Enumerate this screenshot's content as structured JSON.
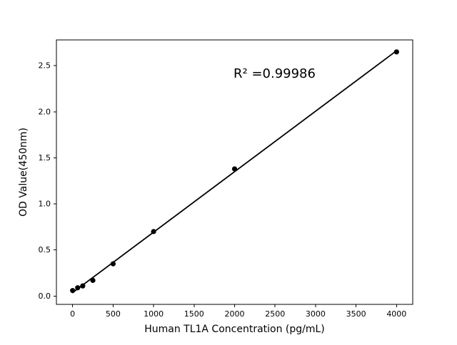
{
  "chart_data": {
    "type": "scatter",
    "title": "",
    "xlabel": "Human TL1A Concentration (pg/mL)",
    "ylabel": "OD Value(450nm)",
    "annotation": "R² =0.99986",
    "r_squared": 0.99986,
    "x": [
      0,
      62.5,
      125,
      250,
      500,
      1000,
      2000,
      4000
    ],
    "y": [
      0.06,
      0.09,
      0.11,
      0.17,
      0.35,
      0.7,
      1.38,
      2.65
    ],
    "trendline": "linear",
    "xlim": [
      -200,
      4200
    ],
    "ylim": [
      -0.09,
      2.78
    ],
    "x_ticks": [
      0,
      500,
      1000,
      1500,
      2000,
      2500,
      3000,
      3500,
      4000
    ],
    "x_tick_labels": [
      "0",
      "500",
      "1000",
      "1500",
      "2000",
      "2500",
      "3000",
      "3500",
      "4000"
    ],
    "y_ticks": [
      0,
      0.5,
      1,
      1.5,
      2,
      2.5
    ],
    "y_tick_labels": [
      "0.0",
      "0.5",
      "1.0",
      "1.5",
      "2.0",
      "2.5"
    ],
    "grid": false,
    "legend": false,
    "marker_color": "#000000",
    "line_color": "#000000",
    "axis_color": "#000000",
    "text_color": "#000000",
    "background_color": "#ffffff"
  }
}
